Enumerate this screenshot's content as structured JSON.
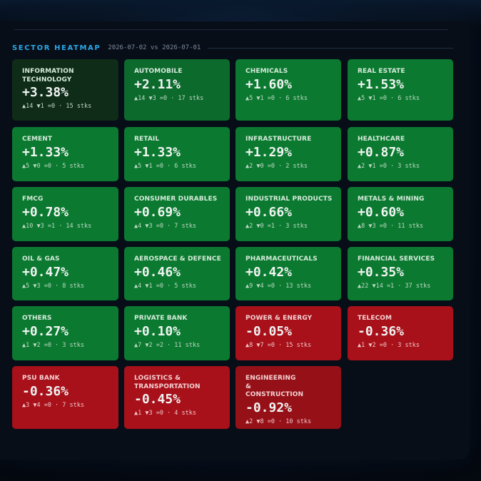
{
  "header": {
    "title": "SECTOR HEATMAP",
    "date_range": "2026-07-02 vs 2026-07-01"
  },
  "colors": {
    "accent": "#2aa8e8",
    "gain": "#0b7a30",
    "loss": "#a8101a",
    "background": "#080e18"
  },
  "sectors": [
    {
      "name": "INFORMATION TECHNOLOGY",
      "change": "+3.38%",
      "stats": "▲14 ▼1 =0 · 15 stks"
    },
    {
      "name": "AUTOMOBILE",
      "change": "+2.11%",
      "stats": "▲14 ▼3 =0 · 17 stks"
    },
    {
      "name": "CHEMICALS",
      "change": "+1.60%",
      "stats": "▲5 ▼1 =0 · 6 stks"
    },
    {
      "name": "REAL ESTATE",
      "change": "+1.53%",
      "stats": "▲5 ▼1 =0 · 6 stks"
    },
    {
      "name": "CEMENT",
      "change": "+1.33%",
      "stats": "▲5 ▼0 =0 · 5 stks"
    },
    {
      "name": "RETAIL",
      "change": "+1.33%",
      "stats": "▲5 ▼1 =0 · 6 stks"
    },
    {
      "name": "INFRASTRUCTURE",
      "change": "+1.29%",
      "stats": "▲2 ▼0 =0 · 2 stks"
    },
    {
      "name": "HEALTHCARE",
      "change": "+0.87%",
      "stats": "▲2 ▼1 =0 · 3 stks"
    },
    {
      "name": "FMCG",
      "change": "+0.78%",
      "stats": "▲10 ▼3 =1 · 14 stks"
    },
    {
      "name": "CONSUMER DURABLES",
      "change": "+0.69%",
      "stats": "▲4 ▼3 =0 · 7 stks"
    },
    {
      "name": "INDUSTRIAL PRODUCTS",
      "change": "+0.66%",
      "stats": "▲2 ▼0 =1 · 3 stks"
    },
    {
      "name": "METALS & MINING",
      "change": "+0.60%",
      "stats": "▲8 ▼3 =0 · 11 stks"
    },
    {
      "name": "OIL & GAS",
      "change": "+0.47%",
      "stats": "▲5 ▼3 =0 · 8 stks"
    },
    {
      "name": "AEROSPACE & DEFENCE",
      "change": "+0.46%",
      "stats": "▲4 ▼1 =0 · 5 stks"
    },
    {
      "name": "PHARMACEUTICALS",
      "change": "+0.42%",
      "stats": "▲9 ▼4 =0 · 13 stks"
    },
    {
      "name": "FINANCIAL SERVICES",
      "change": "+0.35%",
      "stats": "▲22 ▼14 =1 · 37 stks"
    },
    {
      "name": "OTHERS",
      "change": "+0.27%",
      "stats": "▲1 ▼2 =0 · 3 stks"
    },
    {
      "name": "PRIVATE BANK",
      "change": "+0.10%",
      "stats": "▲7 ▼2 =2 · 11 stks"
    },
    {
      "name": "POWER & ENERGY",
      "change": "-0.05%",
      "stats": "▲8 ▼7 =0 · 15 stks"
    },
    {
      "name": "TELECOM",
      "change": "-0.36%",
      "stats": "▲1 ▼2 =0 · 3 stks"
    },
    {
      "name": "PSU BANK",
      "change": "-0.36%",
      "stats": "▲3 ▼4 =0 · 7 stks"
    },
    {
      "name": "LOGISTICS & TRANSPORTATION",
      "change": "-0.45%",
      "stats": "▲1 ▼3 =0 · 4 stks"
    },
    {
      "name": "ENGINEERING & CONSTRUCTION",
      "change": "-0.92%",
      "stats": "▲2 ▼8 =0 · 10 stks"
    }
  ]
}
